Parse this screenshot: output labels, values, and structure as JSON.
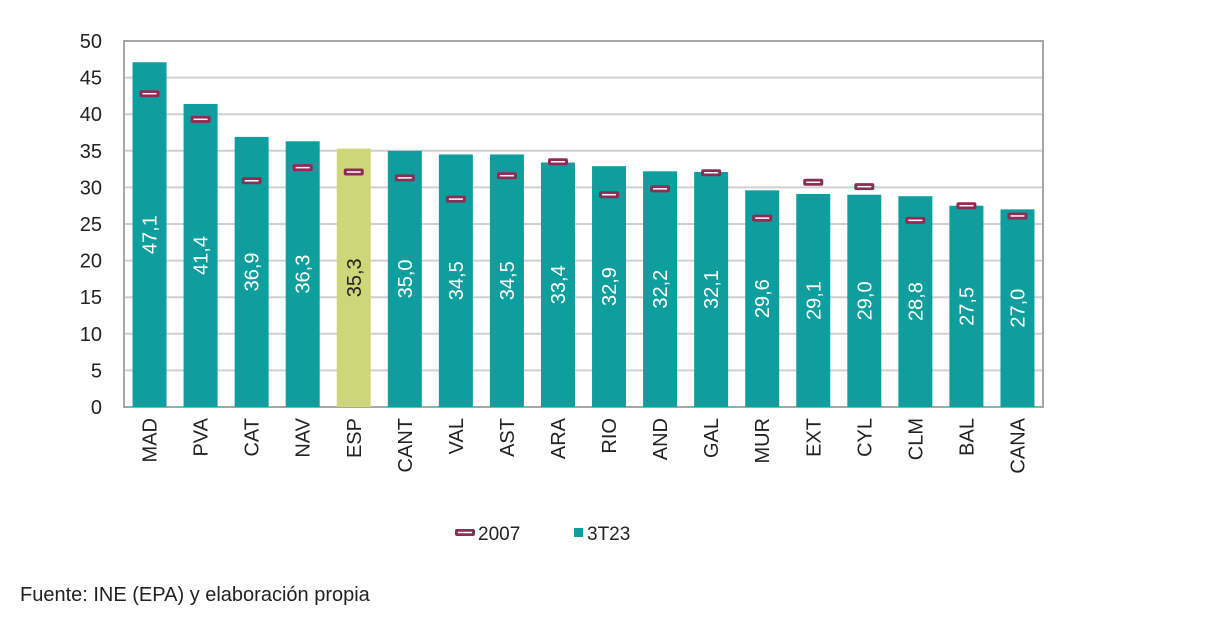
{
  "chart_data": {
    "type": "bar",
    "categories": [
      "MAD",
      "PVA",
      "CAT",
      "NAV",
      "ESP",
      "CANT",
      "VAL",
      "AST",
      "ARA",
      "RIO",
      "AND",
      "GAL",
      "MUR",
      "EXT",
      "CYL",
      "CLM",
      "BAL",
      "CANA"
    ],
    "series": [
      {
        "name": "3T23",
        "type": "bar",
        "color": "#0f9e9e",
        "highlight_color": "#cfd67a",
        "highlight_category": "ESP",
        "values": [
          47.1,
          41.4,
          36.9,
          36.3,
          35.3,
          35.0,
          34.5,
          34.5,
          33.4,
          32.9,
          32.2,
          32.1,
          29.6,
          29.1,
          29.0,
          28.8,
          27.5,
          27.0
        ],
        "labels": [
          "47,1",
          "41,4",
          "36,9",
          "36,3",
          "35,3",
          "35,0",
          "34,5",
          "34,5",
          "33,4",
          "32,9",
          "32,2",
          "32,1",
          "29,6",
          "29,1",
          "29,0",
          "28,8",
          "27,5",
          "27,0"
        ]
      },
      {
        "name": "2007",
        "type": "marker",
        "color": "#8b2d55",
        "values": [
          42.8,
          39.3,
          30.9,
          32.7,
          32.1,
          31.3,
          28.4,
          31.6,
          33.5,
          29.0,
          29.8,
          32.0,
          25.8,
          30.7,
          30.1,
          25.5,
          27.5,
          26.1
        ]
      }
    ],
    "ylim": [
      0,
      50
    ],
    "yticks": [
      0,
      5,
      10,
      15,
      20,
      25,
      30,
      35,
      40,
      45,
      50
    ],
    "grid": true,
    "legend": "bottom",
    "legend_order": [
      "2007",
      "3T23"
    ],
    "xlabel": "",
    "ylabel": "",
    "title": ""
  },
  "source": "Fuente: INE (EPA) y elaboración propia"
}
